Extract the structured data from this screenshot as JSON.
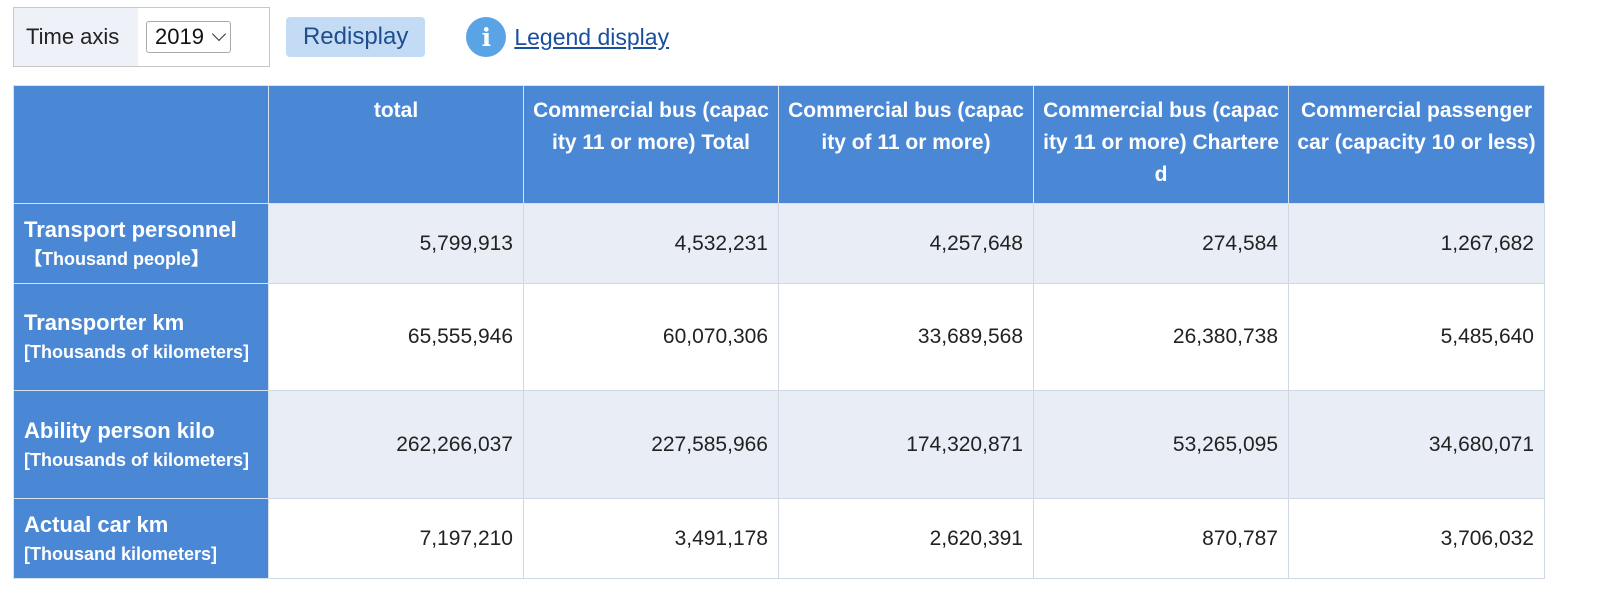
{
  "controls": {
    "time_axis_label": "Time axis",
    "selected_year": "2019",
    "redisplay_label": "Redisplay",
    "info_icon_glyph": "i",
    "legend_link_label": "Legend display"
  },
  "table": {
    "columns": [
      "total",
      "Commercial bus (capacity 11 or more) Total",
      "Commercial bus (capacity of 11 or more)",
      "Commercial bus (capacity 11 or more) Chartered",
      "Commercial passenger car (capacity 10 or less)"
    ],
    "rows": [
      {
        "label": "Transport personnel",
        "unit": "【Thousand people】",
        "values": [
          "5,799,913",
          "4,532,231",
          "4,257,648",
          "274,584",
          "1,267,682"
        ]
      },
      {
        "label": "Transporter km",
        "unit": "[Thousands of kilometers]",
        "values": [
          "65,555,946",
          "60,070,306",
          "33,689,568",
          "26,380,738",
          "5,485,640"
        ]
      },
      {
        "label": "Ability person kilo",
        "unit": "[Thousands of kilometers]",
        "values": [
          "262,266,037",
          "227,585,966",
          "174,320,871",
          "53,265,095",
          "34,680,071"
        ]
      },
      {
        "label": "Actual car km",
        "unit": "[Thousand kilometers]",
        "values": [
          "7,197,210",
          "3,491,178",
          "2,620,391",
          "870,787",
          "3,706,032"
        ]
      }
    ]
  },
  "colors": {
    "header_blue": "#4a88d6",
    "row_shade": "#e9eef6",
    "button_bg": "#c3dbf5",
    "link": "#1a4fa0",
    "info_icon": "#5aa4e6"
  }
}
